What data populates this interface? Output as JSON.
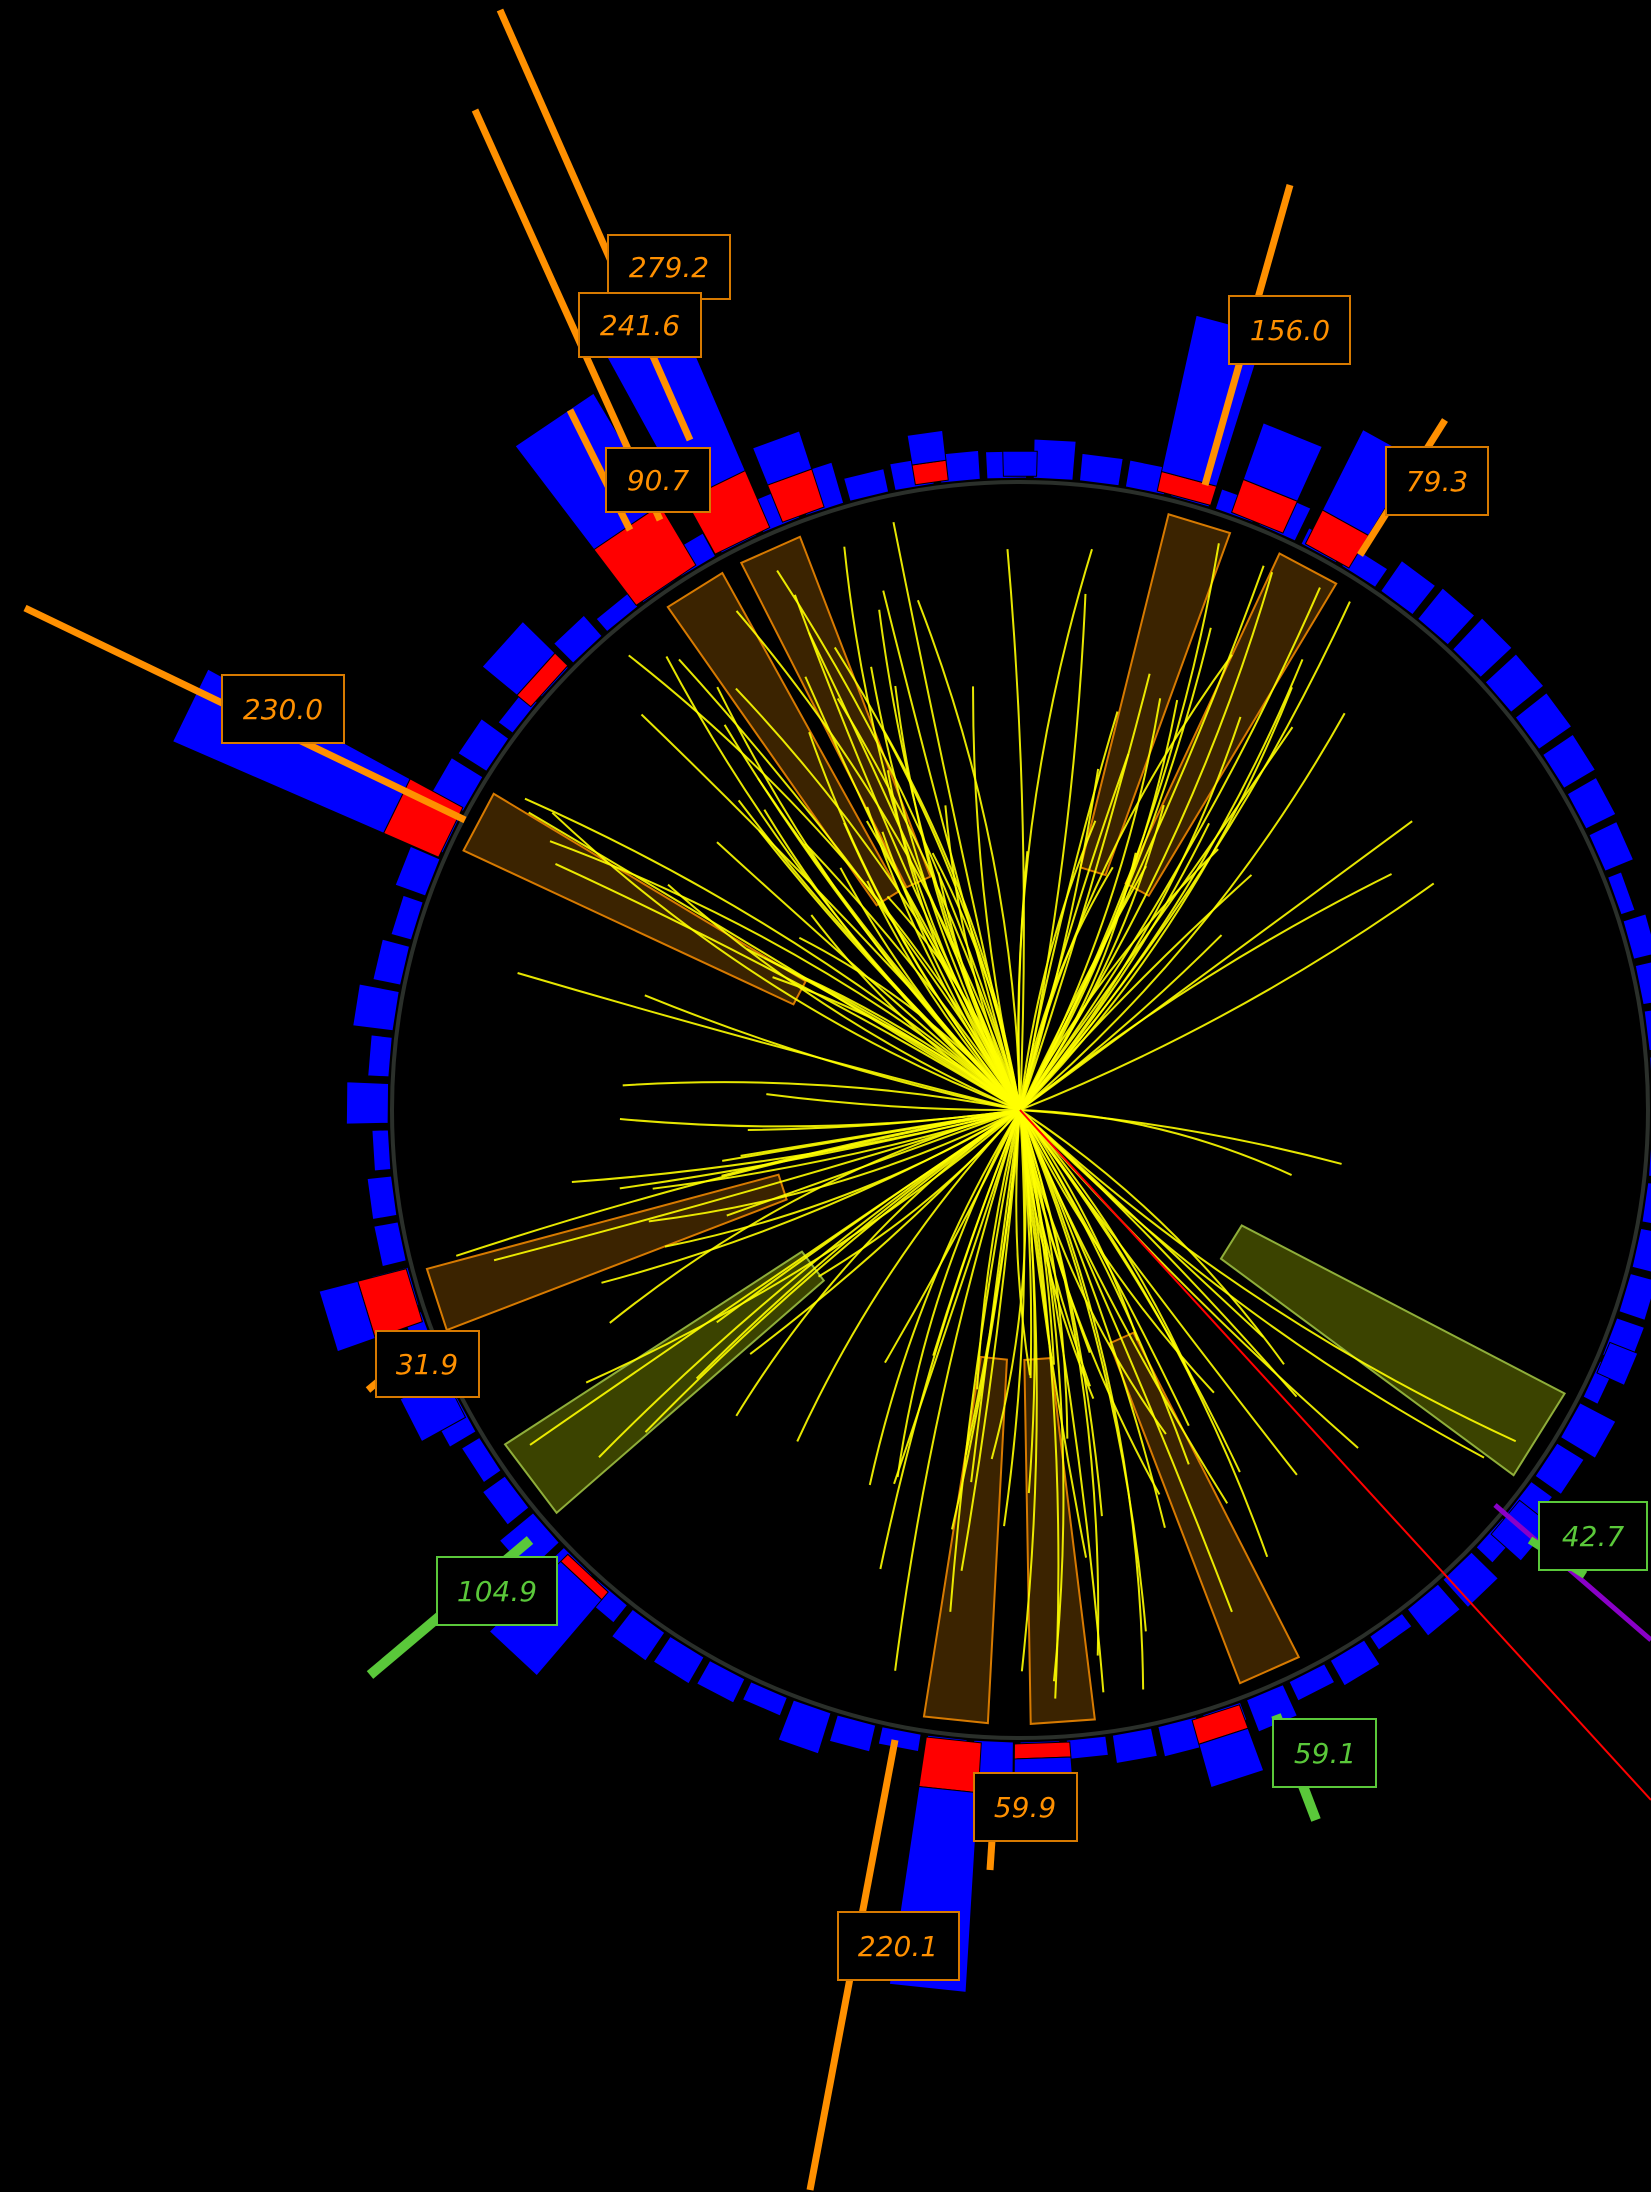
{
  "labels": [
    {
      "id": "jet-279-2",
      "value": "279.2",
      "color": "#ff9000"
    },
    {
      "id": "jet-241-6",
      "value": "241.6",
      "color": "#ff9000"
    },
    {
      "id": "jet-90-7",
      "value": "90.7",
      "color": "#ff9000"
    },
    {
      "id": "jet-156-0",
      "value": "156.0",
      "color": "#ff9000"
    },
    {
      "id": "jet-79-3",
      "value": "79.3",
      "color": "#ff9000"
    },
    {
      "id": "jet-230-0",
      "value": "230.0",
      "color": "#ff9000"
    },
    {
      "id": "jet-31-9",
      "value": "31.9",
      "color": "#ff9000"
    },
    {
      "id": "jet-220-1",
      "value": "220.1",
      "color": "#ff9000"
    },
    {
      "id": "jet-59-9",
      "value": "59.9",
      "color": "#ff9000"
    },
    {
      "id": "green-104-9",
      "value": "104.9",
      "color": "#5ac83a"
    },
    {
      "id": "green-59-1",
      "value": "59.1",
      "color": "#5ac83a"
    },
    {
      "id": "green-42-7",
      "value": "42.7",
      "color": "#5ac83a"
    }
  ],
  "colors": {
    "background": "#000000",
    "hcal": "#0000ff",
    "ecal": "#ff0000",
    "track": "#ffff00",
    "jet": "#ff9000",
    "jet_cone_fill": "#6b3f00",
    "green_cone_fill": "#6b7a00",
    "green": "#5ac83a",
    "purple": "#8a00c8",
    "red_line": "#ff0000"
  }
}
